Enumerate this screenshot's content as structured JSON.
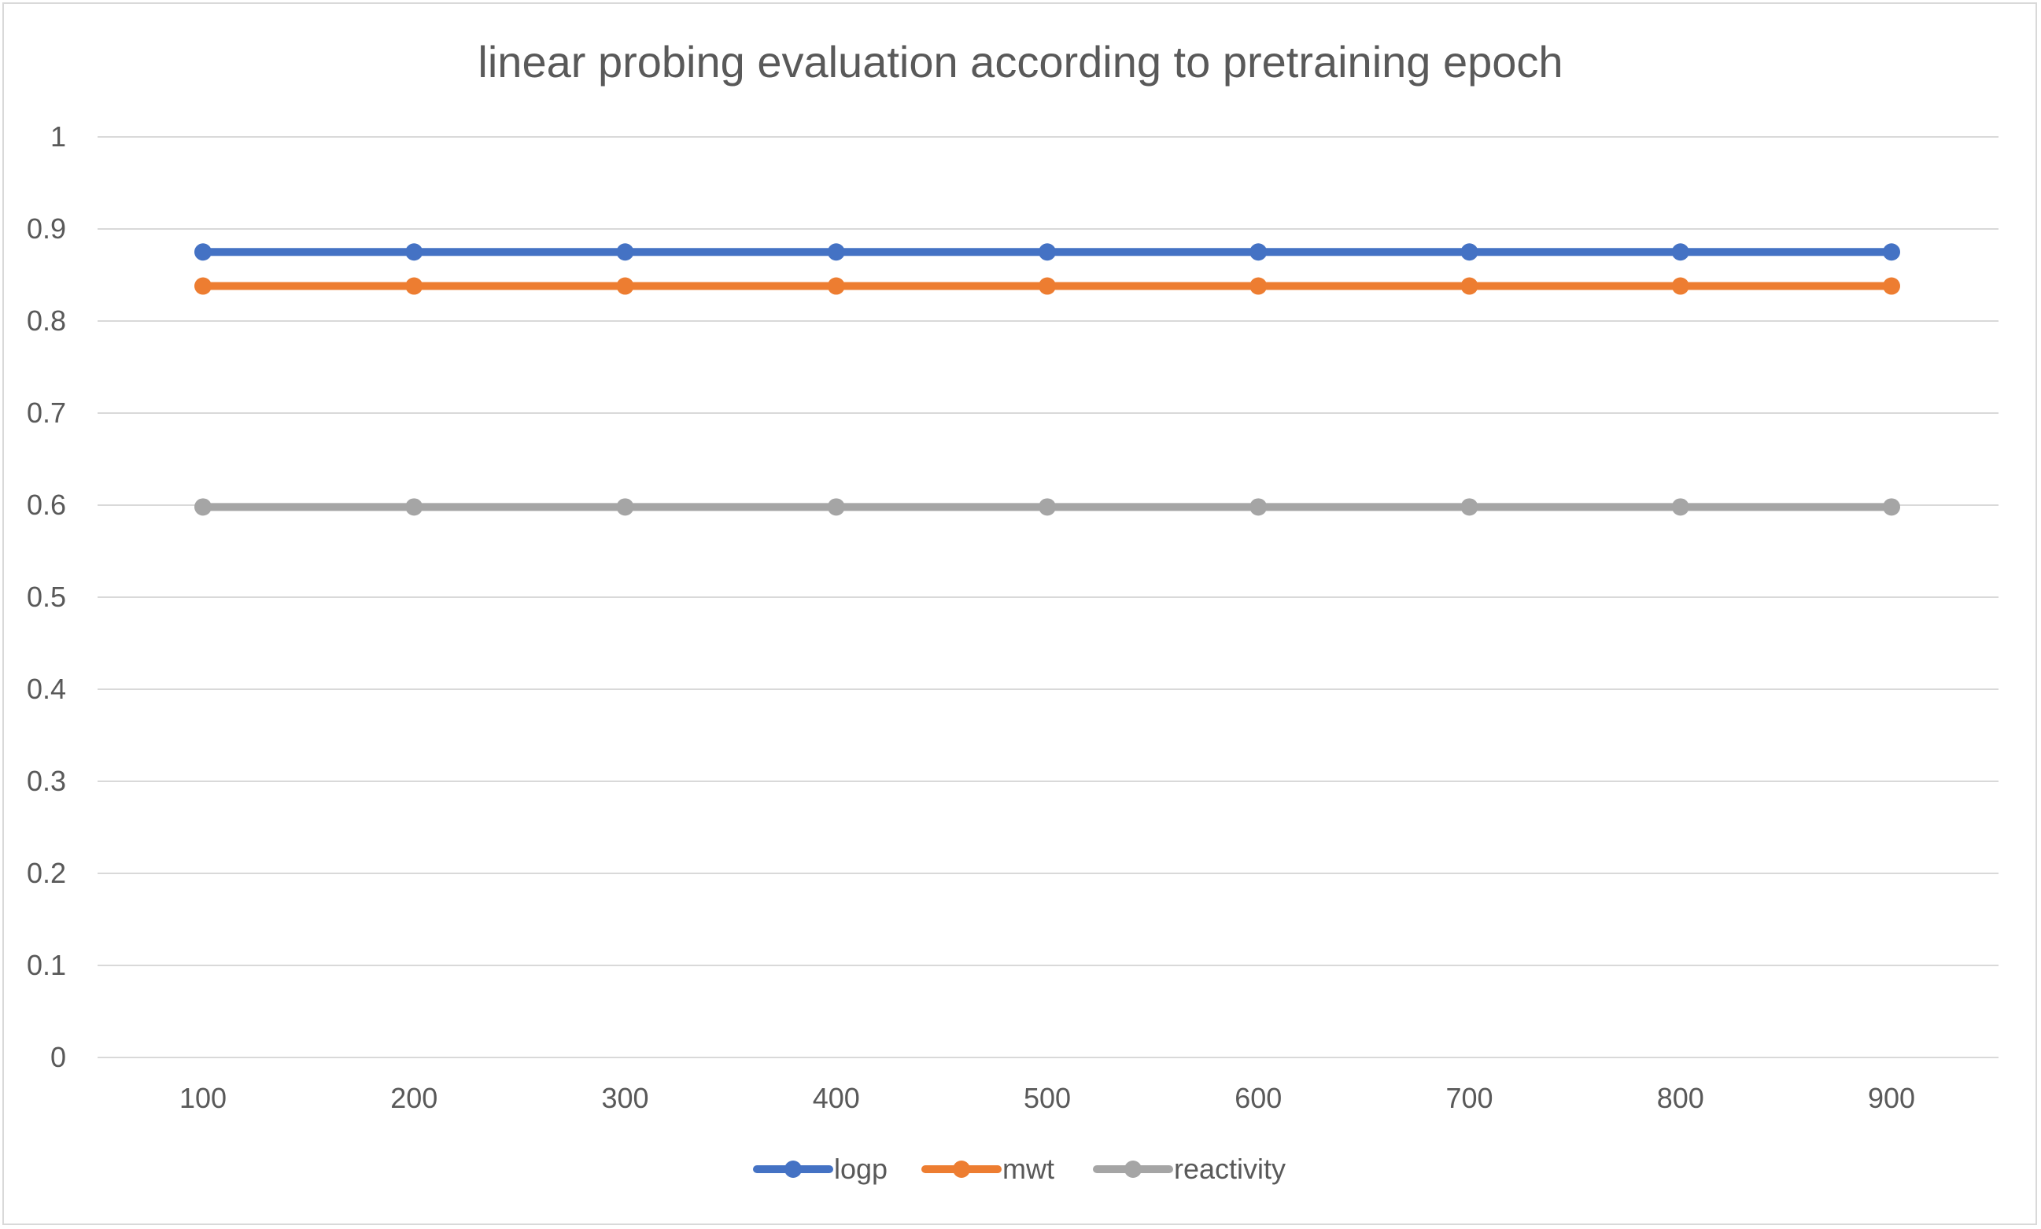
{
  "chart_data": {
    "type": "line",
    "title": "linear probing evaluation according to pretraining epoch",
    "xlabel": "",
    "ylabel": "",
    "categories": [
      "100",
      "200",
      "300",
      "400",
      "500",
      "600",
      "700",
      "800",
      "900"
    ],
    "y_ticks": [
      "0",
      "0.1",
      "0.2",
      "0.3",
      "0.4",
      "0.5",
      "0.6",
      "0.7",
      "0.8",
      "0.9",
      "1"
    ],
    "ylim": [
      0,
      1
    ],
    "grid": true,
    "legend_position": "bottom",
    "series": [
      {
        "name": "logp",
        "color": "#4472c4",
        "values": [
          0.875,
          0.875,
          0.875,
          0.875,
          0.875,
          0.875,
          0.875,
          0.875,
          0.875
        ]
      },
      {
        "name": "mwt",
        "color": "#ed7d31",
        "values": [
          0.838,
          0.838,
          0.838,
          0.838,
          0.838,
          0.838,
          0.838,
          0.838,
          0.838
        ]
      },
      {
        "name": "reactivity",
        "color": "#a5a5a5",
        "values": [
          0.598,
          0.598,
          0.598,
          0.598,
          0.598,
          0.598,
          0.598,
          0.598,
          0.598
        ]
      }
    ]
  }
}
